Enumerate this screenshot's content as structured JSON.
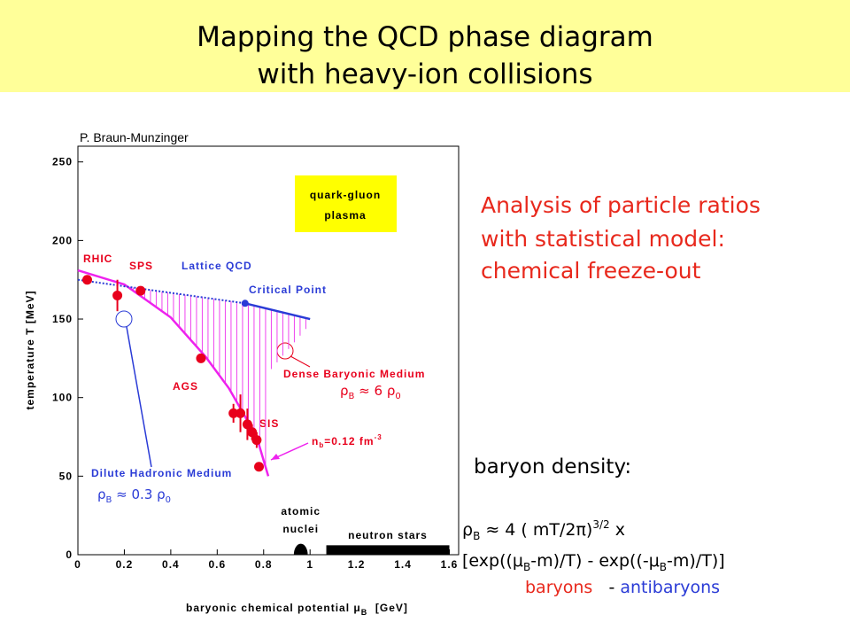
{
  "slide": {
    "title": [
      "Mapping the QCD  phase diagram",
      "with heavy-ion collisions"
    ],
    "analysis": [
      "Analysis of particle ratios",
      "with statistical model:",
      "chemical freeze-out"
    ],
    "density_title": "baryon density:",
    "formula1": [
      "ρ",
      "B",
      " ≈ 4 ( mT/2π)",
      "3/2",
      " x"
    ],
    "formula2": [
      "[exp((μ",
      "B",
      "-m)/T) - exp((-μ",
      "B",
      "-m)/T)]"
    ],
    "formula3": [
      "baryons",
      "   - ",
      "antibaryons"
    ]
  },
  "chart_data": {
    "type": "scatter",
    "credit": "P. Braun-Munzinger",
    "x_label": [
      "baryonic chemical potential μ",
      "B",
      "  [GeV]"
    ],
    "y_label": "temperature T [MeV]",
    "xlim": [
      0,
      1.64
    ],
    "ylim": [
      0,
      260
    ],
    "xticks": [
      0,
      0.2,
      0.4,
      0.6,
      0.8,
      1,
      1.2,
      1.4,
      1.6
    ],
    "yticks": [
      0,
      50,
      100,
      150,
      200,
      250
    ],
    "series": [
      {
        "color": "#e8001c",
        "x": [
          0.04,
          0.17,
          0.27,
          0.53,
          0.67,
          0.7,
          0.73,
          0.75,
          0.77,
          0.78
        ],
        "values": [
          175,
          165,
          168,
          125,
          90,
          90,
          83,
          78,
          73,
          56
        ],
        "errors": [
          null,
          10,
          null,
          null,
          6,
          12,
          10,
          5,
          5,
          null
        ]
      }
    ],
    "curves": [
      {
        "color": "#ee22ee",
        "style": "solid",
        "x": [
          0,
          0.2,
          0.4,
          0.55,
          0.65,
          0.72,
          0.78,
          0.82
        ],
        "values": [
          181,
          172,
          151,
          126,
          106,
          88,
          70,
          50
        ]
      },
      {
        "color": "#2a3bd6",
        "style": "dotted",
        "x": [
          0,
          0.72
        ],
        "values": [
          175,
          160
        ]
      },
      {
        "color": "#2a3bd6",
        "style": "solid",
        "x": [
          0.72,
          1.0
        ],
        "values": [
          160,
          150
        ]
      }
    ],
    "critical_point": {
      "x": 0.72,
      "value": 160,
      "color": "#2a3bd6"
    },
    "regions": [
      {
        "label": [
          "atomic",
          "nuclei"
        ],
        "x": [
          0.93,
          0.99
        ],
        "height": 7
      },
      {
        "label": [
          "neutron stars"
        ],
        "x": [
          1.07,
          1.6
        ],
        "height": 6
      }
    ],
    "qgp_label": [
      "quark-gluon",
      "plasma"
    ],
    "annotations": [
      "RHIC",
      "SPS",
      "Lattice QCD",
      "Critical Point",
      "AGS",
      "SIS",
      "Dense Baryonic Medium",
      "Dilute Hadronic Medium"
    ],
    "rho_dense": [
      "ρ",
      "B",
      " ≈ 6 ρ",
      "0"
    ],
    "rho_dilute": [
      "ρ",
      "B",
      " ≈ 0.3 ρ",
      "0"
    ],
    "nb_label": [
      "n",
      "b",
      "=0.12 fm",
      "-3"
    ]
  }
}
